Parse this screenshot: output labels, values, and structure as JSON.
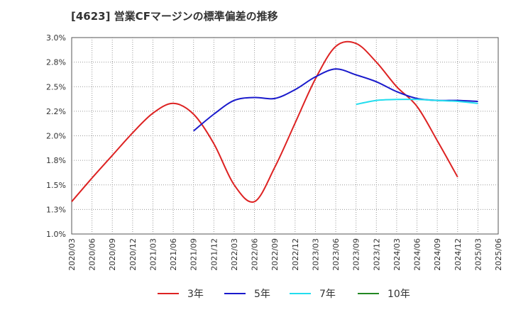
{
  "title": "[4623]  営業CFマージンの標準偏差の推移",
  "chart_data": {
    "type": "line",
    "x": [
      "2020/03",
      "2020/06",
      "2020/09",
      "2020/12",
      "2021/03",
      "2021/06",
      "2021/09",
      "2021/12",
      "2022/03",
      "2022/06",
      "2022/09",
      "2022/12",
      "2023/03",
      "2023/06",
      "2023/09",
      "2023/12",
      "2024/03",
      "2024/06",
      "2024/09",
      "2024/12",
      "2025/03",
      "2025/06"
    ],
    "ylim": [
      1.0,
      3.0
    ],
    "yticks": [
      "1.0%",
      "1.3%",
      "1.5%",
      "1.8%",
      "2.0%",
      "2.2%",
      "2.5%",
      "2.8%",
      "3.0%"
    ],
    "grid": true,
    "legend_position": "bottom",
    "series": [
      {
        "name": "3年",
        "color": "#dd2222",
        "values": [
          1.33,
          1.57,
          1.8,
          2.03,
          2.23,
          2.33,
          2.22,
          1.92,
          1.5,
          1.33,
          1.68,
          2.13,
          2.58,
          2.91,
          2.94,
          2.75,
          2.5,
          2.3,
          1.95,
          1.58,
          null,
          null
        ]
      },
      {
        "name": "5年",
        "color": "#1a1acc",
        "values": [
          null,
          null,
          null,
          null,
          null,
          null,
          2.05,
          2.22,
          2.36,
          2.39,
          2.38,
          2.47,
          2.6,
          2.68,
          2.62,
          2.55,
          2.45,
          2.38,
          2.36,
          2.36,
          2.35,
          null
        ]
      },
      {
        "name": "7年",
        "color": "#22ddee",
        "values": [
          null,
          null,
          null,
          null,
          null,
          null,
          null,
          null,
          null,
          null,
          null,
          null,
          null,
          null,
          2.32,
          2.36,
          2.37,
          2.37,
          2.36,
          2.35,
          2.33,
          null
        ]
      },
      {
        "name": "10年",
        "color": "#228822",
        "values": [
          null,
          null,
          null,
          null,
          null,
          null,
          null,
          null,
          null,
          null,
          null,
          null,
          null,
          null,
          null,
          null,
          null,
          null,
          null,
          null,
          null,
          null
        ]
      }
    ]
  }
}
